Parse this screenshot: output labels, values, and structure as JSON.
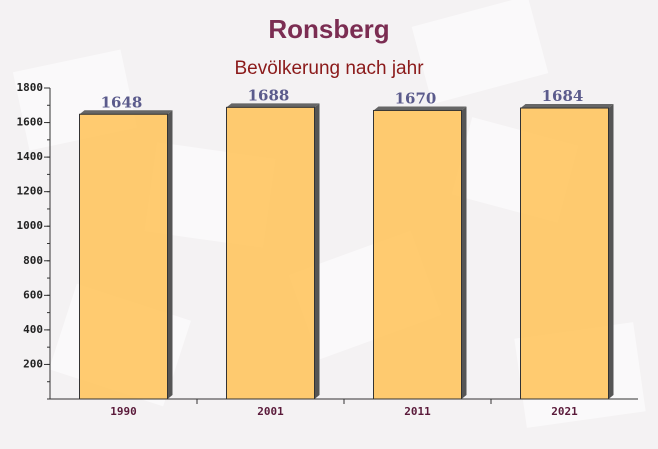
{
  "chart_data": {
    "type": "bar",
    "title": "Ronsberg",
    "subtitle": "Bevölkerung nach jahr",
    "categories": [
      "1990",
      "2001",
      "2011",
      "2021"
    ],
    "values": [
      1648,
      1688,
      1670,
      1684
    ],
    "color": "#ffc357",
    "ylim": [
      0,
      1800
    ],
    "yticks": [
      200,
      400,
      600,
      800,
      1000,
      1200,
      1400,
      1600,
      1800
    ],
    "grid": false
  }
}
